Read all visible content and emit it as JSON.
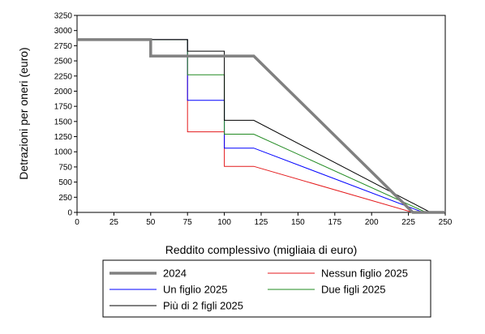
{
  "chart_data": {
    "type": "line",
    "xlabel": "Reddito complessivo (migliaia di euro)",
    "ylabel": "Detrazioni per oneri (euro)",
    "xlim": [
      0,
      250
    ],
    "ylim": [
      0,
      3250
    ],
    "xticks": [
      0,
      25,
      50,
      75,
      100,
      125,
      150,
      175,
      200,
      225,
      250
    ],
    "yticks": [
      0,
      250,
      500,
      750,
      1000,
      1250,
      1500,
      1750,
      2000,
      2250,
      2500,
      2750,
      3000,
      3250
    ],
    "grid": false,
    "legend_position": "bottom",
    "series": [
      {
        "name": "2024",
        "color": "#808080",
        "points": [
          [
            0,
            2850
          ],
          [
            50,
            2850
          ],
          [
            50,
            2580
          ],
          [
            120,
            2580
          ],
          [
            228,
            0
          ],
          [
            250,
            0
          ]
        ]
      },
      {
        "name": "Nessun figlio 2025",
        "color": "#e41a1c",
        "points": [
          [
            0,
            2850
          ],
          [
            75,
            2850
          ],
          [
            75,
            1330
          ],
          [
            100,
            1330
          ],
          [
            100,
            760
          ],
          [
            120,
            760
          ],
          [
            228,
            0
          ],
          [
            250,
            0
          ]
        ]
      },
      {
        "name": "Un figlio 2025",
        "color": "#0000ff",
        "points": [
          [
            0,
            2850
          ],
          [
            75,
            2850
          ],
          [
            75,
            1850
          ],
          [
            100,
            1850
          ],
          [
            100,
            1060
          ],
          [
            120,
            1060
          ],
          [
            235,
            0
          ],
          [
            250,
            0
          ]
        ]
      },
      {
        "name": "Due figli 2025",
        "color": "#228b22",
        "points": [
          [
            0,
            2850
          ],
          [
            75,
            2850
          ],
          [
            75,
            2270
          ],
          [
            100,
            2270
          ],
          [
            100,
            1290
          ],
          [
            120,
            1290
          ],
          [
            237,
            0
          ],
          [
            250,
            0
          ]
        ]
      },
      {
        "name": "Più di 2 figli 2025",
        "color": "#000000",
        "points": [
          [
            0,
            2850
          ],
          [
            75,
            2850
          ],
          [
            75,
            2660
          ],
          [
            100,
            2660
          ],
          [
            100,
            1520
          ],
          [
            120,
            1520
          ],
          [
            240,
            0
          ],
          [
            250,
            0
          ]
        ]
      }
    ],
    "legend_layout": [
      [
        "2024",
        "Nessun figlio 2025"
      ],
      [
        "Un figlio 2025",
        "Due figli 2025"
      ],
      [
        "Più di 2 figli 2025"
      ]
    ]
  }
}
